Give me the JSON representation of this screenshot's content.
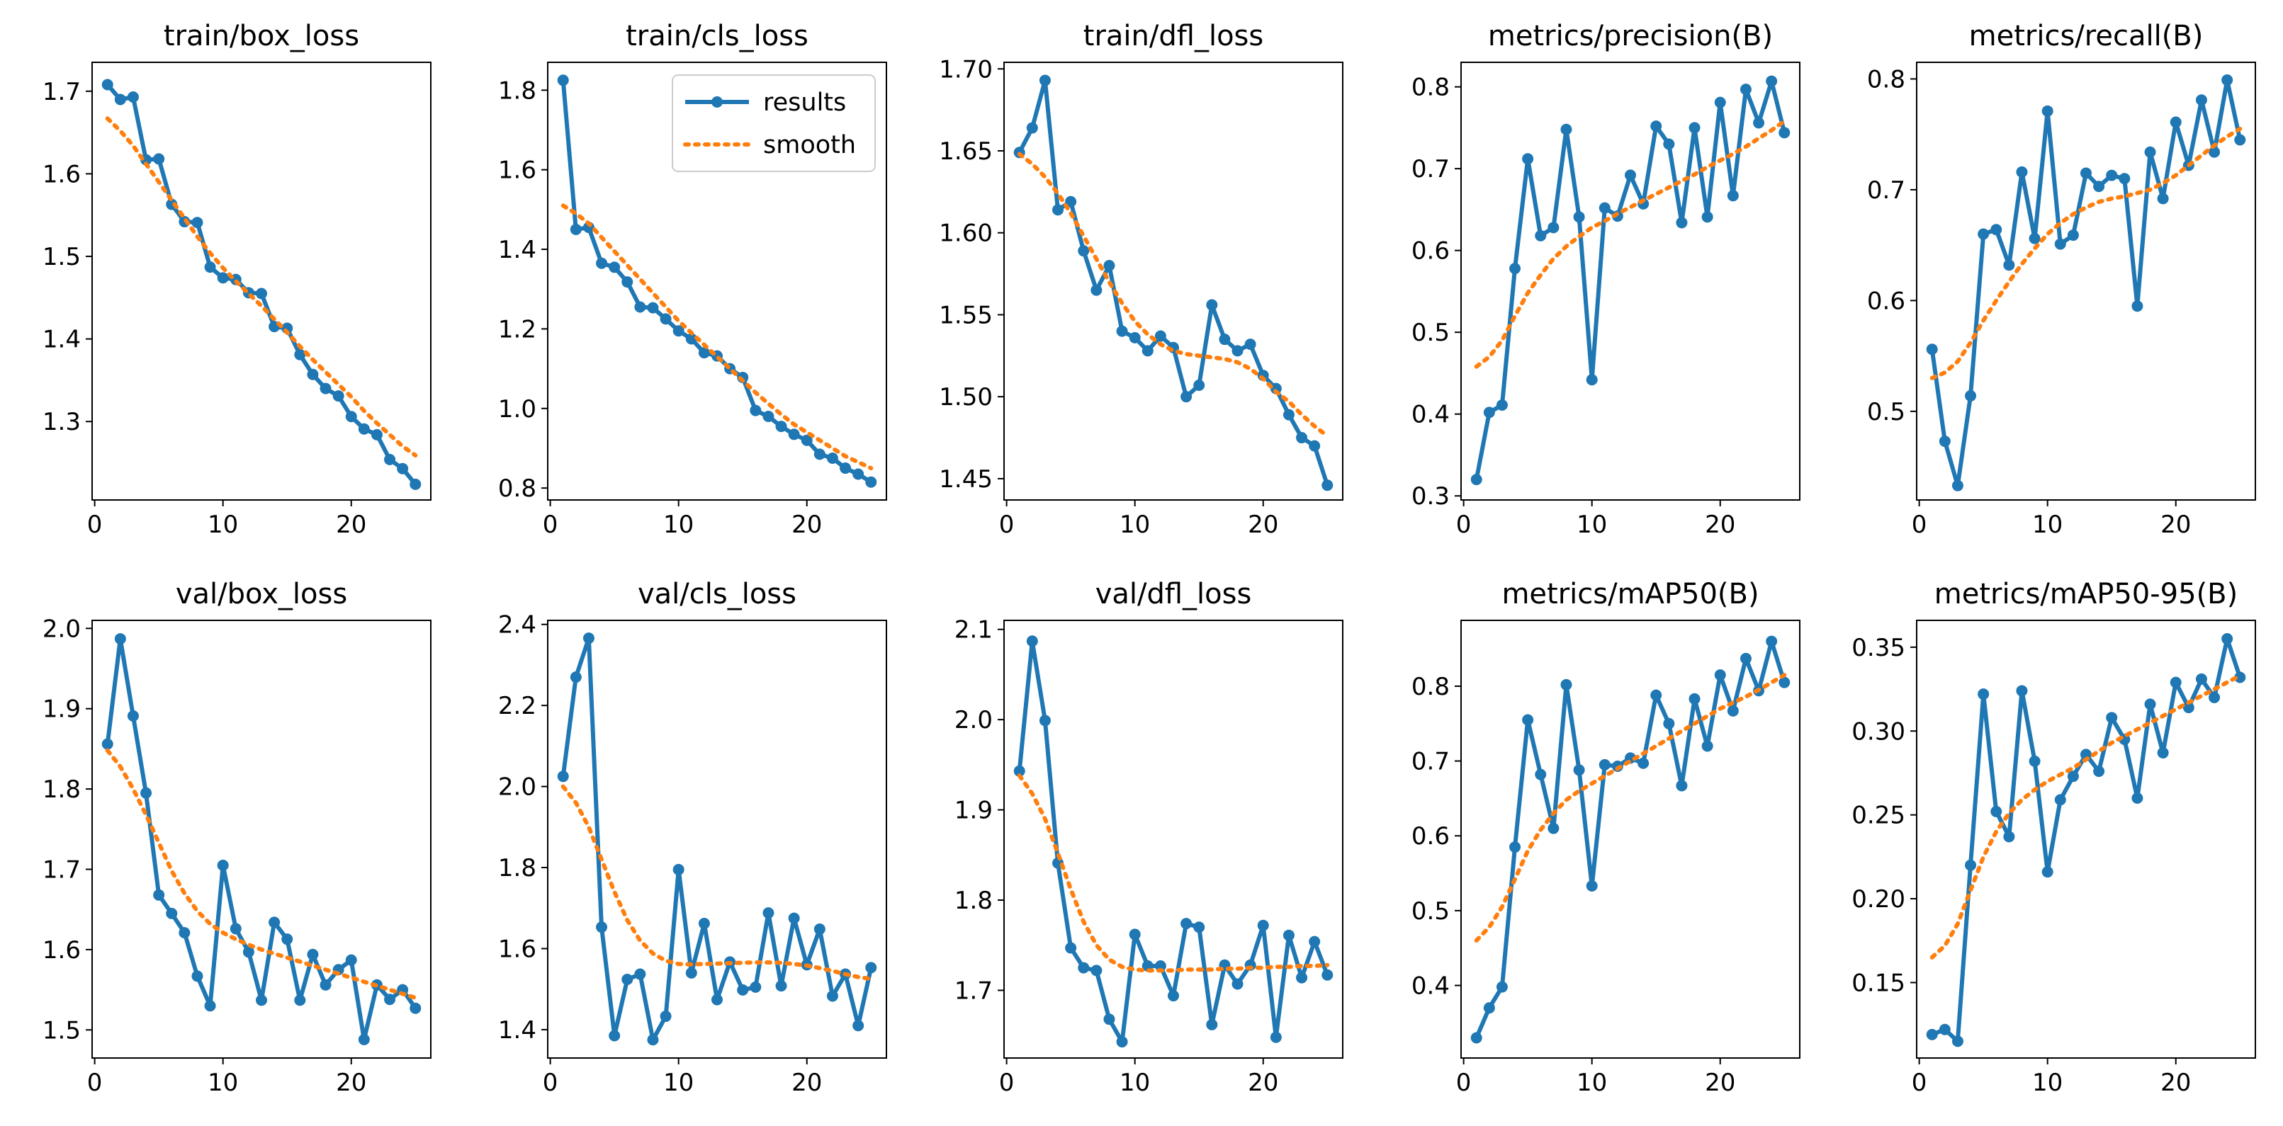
{
  "figure": {
    "rows": 2,
    "cols": 5
  },
  "legend": {
    "location": "upper-right",
    "results_label": "results",
    "smooth_label": "smooth"
  },
  "colors": {
    "results": "#1f77b4",
    "smooth": "#ff7f0e",
    "axes": "#000000",
    "background": "#ffffff"
  },
  "chart_data": [
    {
      "type": "line",
      "title": "train/box_loss",
      "xlabel": "",
      "ylabel": "",
      "xlim": [
        -0.2,
        26.2
      ],
      "ylim": [
        1.205,
        1.735
      ],
      "xticks": [
        0,
        10,
        20
      ],
      "yticks": [
        1.3,
        1.4,
        1.5,
        1.6,
        1.7
      ],
      "ytick_labels": [
        "1.3",
        "1.4",
        "1.5",
        "1.6",
        "1.7"
      ],
      "legend": false,
      "x": [
        1,
        2,
        3,
        4,
        5,
        6,
        7,
        8,
        9,
        10,
        11,
        12,
        13,
        14,
        15,
        16,
        17,
        18,
        19,
        20,
        21,
        22,
        23,
        24,
        25
      ],
      "series": [
        {
          "name": "results",
          "values": [
            1.708,
            1.69,
            1.693,
            1.617,
            1.618,
            1.563,
            1.542,
            1.541,
            1.487,
            1.474,
            1.472,
            1.456,
            1.455,
            1.415,
            1.413,
            1.381,
            1.357,
            1.34,
            1.331,
            1.306,
            1.291,
            1.284,
            1.254,
            1.243,
            1.224
          ]
        },
        {
          "name": "smooth",
          "values": [
            1.667,
            1.652,
            1.634,
            1.612,
            1.59,
            1.568,
            1.546,
            1.524,
            1.504,
            1.486,
            1.47,
            1.455,
            1.44,
            1.424,
            1.408,
            1.391,
            1.375,
            1.36,
            1.345,
            1.33,
            1.313,
            1.298,
            1.284,
            1.27,
            1.259
          ]
        }
      ]
    },
    {
      "type": "line",
      "title": "train/cls_loss",
      "xlabel": "",
      "ylabel": "",
      "xlim": [
        -0.2,
        26.2
      ],
      "ylim": [
        0.77,
        1.87
      ],
      "xticks": [
        0,
        10,
        20
      ],
      "yticks": [
        0.8,
        1.0,
        1.2,
        1.4,
        1.6,
        1.8
      ],
      "ytick_labels": [
        "0.8",
        "1.0",
        "1.2",
        "1.4",
        "1.6",
        "1.8"
      ],
      "legend": true,
      "x": [
        1,
        2,
        3,
        4,
        5,
        6,
        7,
        8,
        9,
        10,
        11,
        12,
        13,
        14,
        15,
        16,
        17,
        18,
        19,
        20,
        21,
        22,
        23,
        24,
        25
      ],
      "series": [
        {
          "name": "results",
          "values": [
            1.825,
            1.45,
            1.455,
            1.365,
            1.355,
            1.318,
            1.255,
            1.253,
            1.225,
            1.195,
            1.175,
            1.14,
            1.132,
            1.1,
            1.078,
            0.995,
            0.98,
            0.955,
            0.935,
            0.92,
            0.885,
            0.875,
            0.85,
            0.835,
            0.815
          ]
        },
        {
          "name": "smooth",
          "values": [
            1.51,
            1.49,
            1.465,
            1.43,
            1.395,
            1.36,
            1.325,
            1.29,
            1.255,
            1.22,
            1.19,
            1.16,
            1.13,
            1.1,
            1.07,
            1.04,
            1.012,
            0.985,
            0.96,
            0.94,
            0.92,
            0.9,
            0.88,
            0.865,
            0.85
          ]
        }
      ]
    },
    {
      "type": "line",
      "title": "train/dfl_loss",
      "xlabel": "",
      "ylabel": "",
      "xlim": [
        -0.2,
        26.2
      ],
      "ylim": [
        1.437,
        1.704
      ],
      "xticks": [
        0,
        10,
        20
      ],
      "yticks": [
        1.45,
        1.5,
        1.55,
        1.6,
        1.65,
        1.7
      ],
      "ytick_labels": [
        "1.45",
        "1.50",
        "1.55",
        "1.60",
        "1.65",
        "1.70"
      ],
      "legend": false,
      "x": [
        1,
        2,
        3,
        4,
        5,
        6,
        7,
        8,
        9,
        10,
        11,
        12,
        13,
        14,
        15,
        16,
        17,
        18,
        19,
        20,
        21,
        22,
        23,
        24,
        25
      ],
      "series": [
        {
          "name": "results",
          "values": [
            1.649,
            1.664,
            1.693,
            1.614,
            1.619,
            1.589,
            1.565,
            1.58,
            1.54,
            1.536,
            1.528,
            1.537,
            1.53,
            1.5,
            1.507,
            1.556,
            1.535,
            1.528,
            1.532,
            1.513,
            1.505,
            1.489,
            1.475,
            1.47,
            1.446
          ]
        },
        {
          "name": "smooth",
          "values": [
            1.648,
            1.642,
            1.634,
            1.624,
            1.612,
            1.598,
            1.584,
            1.57,
            1.557,
            1.546,
            1.538,
            1.532,
            1.528,
            1.526,
            1.525,
            1.524,
            1.523,
            1.521,
            1.517,
            1.511,
            1.503,
            1.497,
            1.489,
            1.482,
            1.476
          ]
        }
      ]
    },
    {
      "type": "line",
      "title": "metrics/precision(B)",
      "xlabel": "",
      "ylabel": "",
      "xlim": [
        -0.2,
        26.2
      ],
      "ylim": [
        0.295,
        0.83
      ],
      "xticks": [
        0,
        10,
        20
      ],
      "yticks": [
        0.3,
        0.4,
        0.5,
        0.6,
        0.7,
        0.8
      ],
      "ytick_labels": [
        "0.3",
        "0.4",
        "0.5",
        "0.6",
        "0.7",
        "0.8"
      ],
      "legend": false,
      "x": [
        1,
        2,
        3,
        4,
        5,
        6,
        7,
        8,
        9,
        10,
        11,
        12,
        13,
        14,
        15,
        16,
        17,
        18,
        19,
        20,
        21,
        22,
        23,
        24,
        25
      ],
      "series": [
        {
          "name": "results",
          "values": [
            0.32,
            0.402,
            0.411,
            0.578,
            0.712,
            0.618,
            0.628,
            0.748,
            0.641,
            0.442,
            0.652,
            0.642,
            0.692,
            0.657,
            0.752,
            0.73,
            0.634,
            0.75,
            0.641,
            0.781,
            0.667,
            0.797,
            0.756,
            0.807,
            0.744
          ]
        },
        {
          "name": "smooth",
          "values": [
            0.458,
            0.47,
            0.49,
            0.52,
            0.548,
            0.57,
            0.59,
            0.605,
            0.617,
            0.628,
            0.636,
            0.645,
            0.653,
            0.661,
            0.669,
            0.677,
            0.685,
            0.693,
            0.702,
            0.71,
            0.718,
            0.727,
            0.737,
            0.747,
            0.758
          ]
        }
      ]
    },
    {
      "type": "line",
      "title": "metrics/recall(B)",
      "xlabel": "",
      "ylabel": "",
      "xlim": [
        -0.2,
        26.2
      ],
      "ylim": [
        0.42,
        0.815
      ],
      "xticks": [
        0,
        10,
        20
      ],
      "yticks": [
        0.5,
        0.6,
        0.7,
        0.8
      ],
      "ytick_labels": [
        "0.5",
        "0.6",
        "0.7",
        "0.8"
      ],
      "legend": false,
      "x": [
        1,
        2,
        3,
        4,
        5,
        6,
        7,
        8,
        9,
        10,
        11,
        12,
        13,
        14,
        15,
        16,
        17,
        18,
        19,
        20,
        21,
        22,
        23,
        24,
        25
      ],
      "series": [
        {
          "name": "results",
          "values": [
            0.556,
            0.473,
            0.433,
            0.514,
            0.66,
            0.664,
            0.632,
            0.716,
            0.656,
            0.771,
            0.651,
            0.659,
            0.715,
            0.703,
            0.713,
            0.71,
            0.595,
            0.734,
            0.692,
            0.761,
            0.722,
            0.781,
            0.734,
            0.799,
            0.745
          ]
        },
        {
          "name": "smooth",
          "values": [
            0.53,
            0.535,
            0.545,
            0.562,
            0.582,
            0.6,
            0.617,
            0.633,
            0.647,
            0.66,
            0.67,
            0.678,
            0.684,
            0.689,
            0.692,
            0.694,
            0.697,
            0.7,
            0.706,
            0.713,
            0.722,
            0.731,
            0.74,
            0.748,
            0.755
          ]
        }
      ]
    },
    {
      "type": "line",
      "title": "val/box_loss",
      "xlabel": "",
      "ylabel": "",
      "xlim": [
        -0.2,
        26.2
      ],
      "ylim": [
        1.465,
        2.01
      ],
      "xticks": [
        0,
        10,
        20
      ],
      "yticks": [
        1.5,
        1.6,
        1.7,
        1.8,
        1.9,
        2.0
      ],
      "ytick_labels": [
        "1.5",
        "1.6",
        "1.7",
        "1.8",
        "1.9",
        "2.0"
      ],
      "legend": false,
      "x": [
        1,
        2,
        3,
        4,
        5,
        6,
        7,
        8,
        9,
        10,
        11,
        12,
        13,
        14,
        15,
        16,
        17,
        18,
        19,
        20,
        21,
        22,
        23,
        24,
        25
      ],
      "series": [
        {
          "name": "results",
          "values": [
            1.856,
            1.987,
            1.891,
            1.795,
            1.668,
            1.645,
            1.621,
            1.567,
            1.53,
            1.705,
            1.626,
            1.597,
            1.537,
            1.634,
            1.613,
            1.537,
            1.594,
            1.556,
            1.575,
            1.587,
            1.488,
            1.556,
            1.538,
            1.55,
            1.527
          ]
        },
        {
          "name": "smooth",
          "values": [
            1.848,
            1.828,
            1.8,
            1.768,
            1.733,
            1.698,
            1.67,
            1.648,
            1.632,
            1.621,
            1.613,
            1.606,
            1.6,
            1.595,
            1.59,
            1.585,
            1.58,
            1.575,
            1.57,
            1.565,
            1.56,
            1.555,
            1.55,
            1.545,
            1.54
          ]
        }
      ]
    },
    {
      "type": "line",
      "title": "val/cls_loss",
      "xlabel": "",
      "ylabel": "",
      "xlim": [
        -0.2,
        26.2
      ],
      "ylim": [
        1.33,
        2.41
      ],
      "xticks": [
        0,
        10,
        20
      ],
      "yticks": [
        1.4,
        1.6,
        1.8,
        2.0,
        2.2,
        2.4
      ],
      "ytick_labels": [
        "1.4",
        "1.6",
        "1.8",
        "2.0",
        "2.2",
        "2.4"
      ],
      "legend": false,
      "x": [
        1,
        2,
        3,
        4,
        5,
        6,
        7,
        8,
        9,
        10,
        11,
        12,
        13,
        14,
        15,
        16,
        17,
        18,
        19,
        20,
        21,
        22,
        23,
        24,
        25
      ],
      "series": [
        {
          "name": "results",
          "values": [
            2.025,
            2.27,
            2.366,
            1.653,
            1.385,
            1.524,
            1.537,
            1.375,
            1.433,
            1.795,
            1.54,
            1.662,
            1.474,
            1.567,
            1.498,
            1.505,
            1.688,
            1.508,
            1.675,
            1.56,
            1.648,
            1.483,
            1.537,
            1.41,
            1.553
          ]
        },
        {
          "name": "smooth",
          "values": [
            2.0,
            1.96,
            1.9,
            1.82,
            1.74,
            1.67,
            1.62,
            1.588,
            1.57,
            1.562,
            1.561,
            1.562,
            1.563,
            1.564,
            1.565,
            1.566,
            1.566,
            1.565,
            1.562,
            1.558,
            1.552,
            1.545,
            1.537,
            1.53,
            1.525
          ]
        }
      ]
    },
    {
      "type": "line",
      "title": "val/dfl_loss",
      "xlabel": "",
      "ylabel": "",
      "xlim": [
        -0.2,
        26.2
      ],
      "ylim": [
        1.625,
        2.11
      ],
      "xticks": [
        0,
        10,
        20
      ],
      "yticks": [
        1.7,
        1.8,
        1.9,
        2.0,
        2.1
      ],
      "ytick_labels": [
        "1.7",
        "1.8",
        "1.9",
        "2.0",
        "2.1"
      ],
      "legend": false,
      "x": [
        1,
        2,
        3,
        4,
        5,
        6,
        7,
        8,
        9,
        10,
        11,
        12,
        13,
        14,
        15,
        16,
        17,
        18,
        19,
        20,
        21,
        22,
        23,
        24,
        25
      ],
      "series": [
        {
          "name": "results",
          "values": [
            1.943,
            2.087,
            1.999,
            1.841,
            1.747,
            1.725,
            1.722,
            1.668,
            1.643,
            1.762,
            1.727,
            1.727,
            1.694,
            1.774,
            1.77,
            1.662,
            1.728,
            1.707,
            1.728,
            1.772,
            1.648,
            1.761,
            1.714,
            1.754,
            1.717
          ]
        },
        {
          "name": "smooth",
          "values": [
            1.938,
            1.918,
            1.89,
            1.852,
            1.812,
            1.776,
            1.75,
            1.734,
            1.726,
            1.723,
            1.722,
            1.722,
            1.722,
            1.723,
            1.723,
            1.723,
            1.724,
            1.724,
            1.725,
            1.725,
            1.726,
            1.726,
            1.727,
            1.727,
            1.728
          ]
        }
      ]
    },
    {
      "type": "line",
      "title": "metrics/mAP50(B)",
      "xlabel": "",
      "ylabel": "",
      "xlim": [
        -0.2,
        26.2
      ],
      "ylim": [
        0.303,
        0.888
      ],
      "xticks": [
        0,
        10,
        20
      ],
      "yticks": [
        0.4,
        0.5,
        0.6,
        0.7,
        0.8
      ],
      "ytick_labels": [
        "0.4",
        "0.5",
        "0.6",
        "0.7",
        "0.8"
      ],
      "legend": false,
      "x": [
        1,
        2,
        3,
        4,
        5,
        6,
        7,
        8,
        9,
        10,
        11,
        12,
        13,
        14,
        15,
        16,
        17,
        18,
        19,
        20,
        21,
        22,
        23,
        24,
        25
      ],
      "series": [
        {
          "name": "results",
          "values": [
            0.33,
            0.37,
            0.398,
            0.585,
            0.755,
            0.682,
            0.61,
            0.802,
            0.688,
            0.533,
            0.695,
            0.693,
            0.704,
            0.697,
            0.788,
            0.75,
            0.667,
            0.783,
            0.72,
            0.815,
            0.767,
            0.837,
            0.794,
            0.86,
            0.805
          ]
        },
        {
          "name": "smooth",
          "values": [
            0.46,
            0.478,
            0.505,
            0.542,
            0.58,
            0.608,
            0.63,
            0.648,
            0.66,
            0.67,
            0.68,
            0.69,
            0.7,
            0.71,
            0.72,
            0.73,
            0.74,
            0.75,
            0.76,
            0.77,
            0.778,
            0.786,
            0.795,
            0.805,
            0.815
          ]
        }
      ]
    },
    {
      "type": "line",
      "title": "metrics/mAP50-95(B)",
      "xlabel": "",
      "ylabel": "",
      "xlim": [
        -0.2,
        26.2
      ],
      "ylim": [
        0.105,
        0.366
      ],
      "xticks": [
        0,
        10,
        20
      ],
      "yticks": [
        0.15,
        0.2,
        0.25,
        0.3,
        0.35
      ],
      "ytick_labels": [
        "0.15",
        "0.20",
        "0.25",
        "0.30",
        "0.35"
      ],
      "legend": false,
      "x": [
        1,
        2,
        3,
        4,
        5,
        6,
        7,
        8,
        9,
        10,
        11,
        12,
        13,
        14,
        15,
        16,
        17,
        18,
        19,
        20,
        21,
        22,
        23,
        24,
        25
      ],
      "series": [
        {
          "name": "results",
          "values": [
            0.119,
            0.122,
            0.115,
            0.22,
            0.322,
            0.252,
            0.237,
            0.324,
            0.282,
            0.216,
            0.259,
            0.273,
            0.286,
            0.276,
            0.308,
            0.295,
            0.26,
            0.316,
            0.287,
            0.329,
            0.314,
            0.331,
            0.32,
            0.355,
            0.332
          ]
        },
        {
          "name": "smooth",
          "values": [
            0.165,
            0.172,
            0.185,
            0.205,
            0.225,
            0.24,
            0.251,
            0.259,
            0.265,
            0.27,
            0.274,
            0.278,
            0.283,
            0.288,
            0.293,
            0.297,
            0.301,
            0.305,
            0.309,
            0.313,
            0.317,
            0.321,
            0.325,
            0.329,
            0.333
          ]
        }
      ]
    }
  ]
}
